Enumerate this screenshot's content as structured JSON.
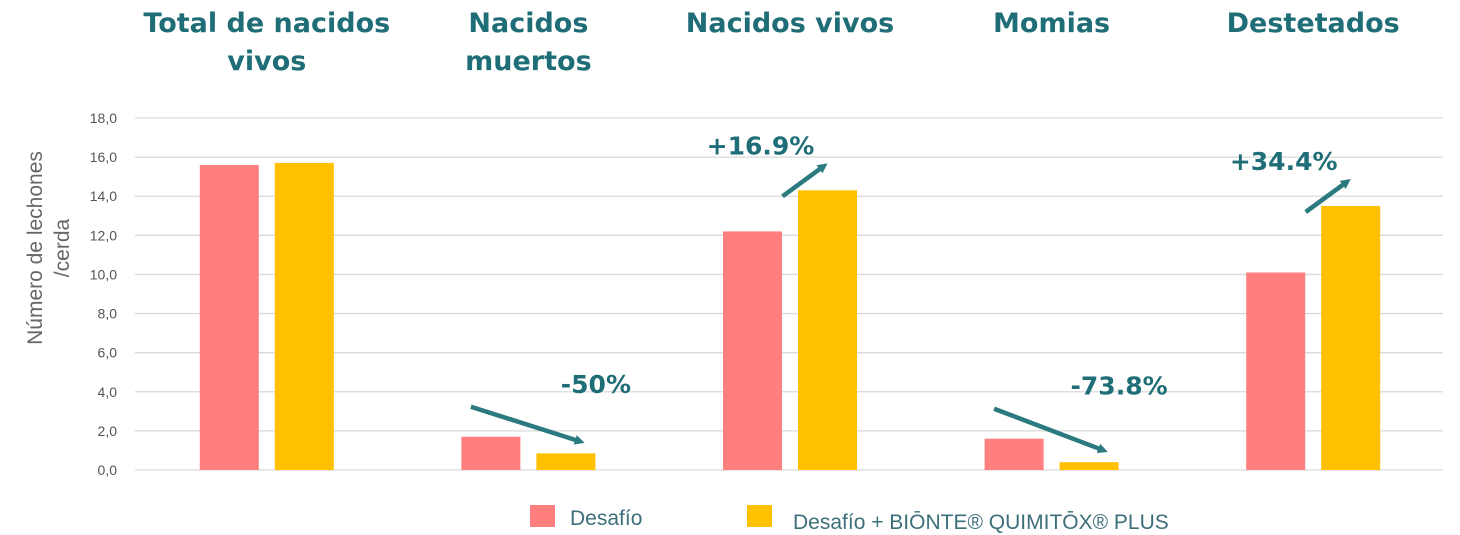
{
  "chart_data": {
    "type": "bar",
    "categories": [
      "Total de nacidos vivos",
      "Nacidos muertos",
      "Nacidos vivos",
      "Momias",
      "Destetados"
    ],
    "category_title_lines": [
      [
        "Total de nacidos",
        "vivos"
      ],
      [
        "Nacidos",
        "muertos"
      ],
      [
        "Nacidos vivos"
      ],
      [
        "Momias"
      ],
      [
        "Destetados"
      ]
    ],
    "series": [
      {
        "name": "Desafío",
        "color": "#ff7f7f",
        "values": [
          15.6,
          1.7,
          12.2,
          1.6,
          10.1
        ]
      },
      {
        "name": "Desafío + BIŌNTE® QUIMITŌX® PLUS",
        "color": "#ffc000",
        "values": [
          15.7,
          0.85,
          14.3,
          0.4,
          13.5
        ]
      }
    ],
    "ylim": [
      0,
      18
    ],
    "yticks": [
      "0,0",
      "2,0",
      "4,0",
      "6,0",
      "8,0",
      "10,0",
      "12,0",
      "14,0",
      "16,0",
      "18,0"
    ],
    "ylabel_lines": [
      "Número de lechones",
      "/cerda"
    ],
    "xlabel": "",
    "grid": true,
    "legend_position": "bottom",
    "annotations": [
      {
        "category_index": 1,
        "text": "-50%",
        "direction": "down"
      },
      {
        "category_index": 2,
        "text": "+16.9%",
        "direction": "up"
      },
      {
        "category_index": 3,
        "text": "-73.8%",
        "direction": "down"
      },
      {
        "category_index": 4,
        "text": "+34.4%",
        "direction": "up"
      }
    ],
    "colors": {
      "title": "#1f6e77",
      "arrow": "#2b7a80",
      "grid": "#d9d9d9"
    }
  }
}
